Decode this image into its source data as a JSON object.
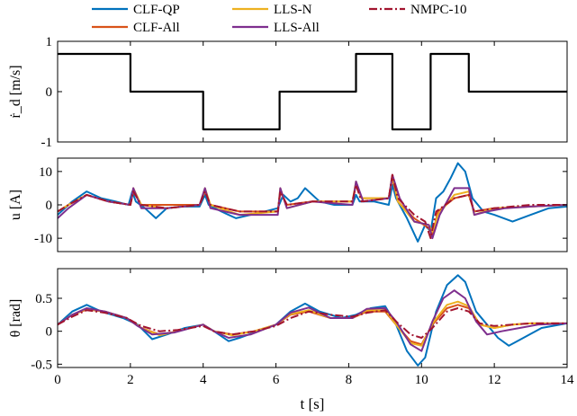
{
  "chart_data": {
    "type": "line",
    "xlabel": "t [s]",
    "xlim": [
      0,
      14
    ],
    "xticks": [
      0,
      2,
      4,
      6,
      8,
      10,
      12,
      14
    ],
    "grid": false,
    "legend": {
      "placement": "top",
      "entries": [
        {
          "label": "CLF-QP",
          "color": "#0072BD",
          "style": "solid"
        },
        {
          "label": "LLS-N",
          "color": "#EDB120",
          "style": "solid"
        },
        {
          "label": "NMPC-10",
          "color": "#A2142F",
          "style": "dashdot"
        },
        {
          "label": "CLF-All",
          "color": "#D95319",
          "style": "solid"
        },
        {
          "label": "LLS-All",
          "color": "#7E2F8E",
          "style": "solid"
        }
      ]
    },
    "panels": [
      {
        "id": "rdot",
        "ylabel": "ṙ_d [m/s]",
        "ylim": [
          -1,
          1
        ],
        "yticks": [
          -1,
          0,
          1
        ],
        "yticklabels": [
          "-1",
          "0",
          "1"
        ],
        "series": [
          {
            "name": "reference",
            "color": "#000000",
            "style": "step",
            "x": [
              0,
              2,
              2,
              4,
              4,
              6.1,
              6.1,
              8.2,
              8.2,
              9.2,
              9.2,
              10.25,
              10.25,
              11.3,
              11.3,
              14
            ],
            "y": [
              0.75,
              0.75,
              0,
              0,
              -0.75,
              -0.75,
              0,
              0,
              0.75,
              0.75,
              -0.75,
              -0.75,
              0.75,
              0.75,
              0,
              0
            ]
          }
        ]
      },
      {
        "id": "u",
        "ylabel": "u [A]",
        "ylim": [
          -14,
          14
        ],
        "yticks": [
          -10,
          0,
          10
        ],
        "yticklabels": [
          "-10",
          "0",
          "10"
        ],
        "series": [
          {
            "name": "CLF-QP",
            "color": "#0072BD",
            "x": [
              0,
              0.2,
              0.4,
              0.8,
              1.2,
              1.6,
              1.95,
              2.05,
              2.15,
              2.4,
              2.7,
              3.0,
              3.4,
              3.9,
              4.05,
              4.15,
              4.5,
              4.9,
              5.3,
              5.7,
              6.05,
              6.2,
              6.4,
              6.6,
              6.8,
              7.2,
              7.6,
              8.1,
              8.2,
              8.3,
              8.7,
              9.1,
              9.2,
              9.3,
              9.6,
              9.9,
              10.1,
              10.25,
              10.4,
              10.6,
              10.8,
              11.0,
              11.2,
              11.4,
              11.7,
              12.0,
              12.5,
              13.0,
              13.5,
              14.0
            ],
            "y": [
              -3,
              -1,
              1,
              4,
              2,
              1,
              0,
              4,
              1,
              -1,
              -4,
              -1,
              -0.5,
              -0.5,
              3,
              0,
              -2,
              -4,
              -3,
              -2,
              -1,
              3,
              1,
              2,
              5,
              1,
              0,
              0,
              3,
              1,
              1,
              0,
              6,
              2,
              -4,
              -11,
              -6,
              -8,
              2,
              4,
              8,
              12.5,
              10,
              2,
              -2,
              -3,
              -5,
              -3,
              -1,
              -0.5
            ]
          },
          {
            "name": "CLF-All",
            "color": "#D95319",
            "x": [
              0,
              0.3,
              0.8,
              1.4,
              2.0,
              2.08,
              2.3,
              3.0,
              3.9,
              4.05,
              4.2,
              5.0,
              6.05,
              6.12,
              6.3,
              7.0,
              8.1,
              8.2,
              8.35,
              9.1,
              9.2,
              9.35,
              9.8,
              10.2,
              10.3,
              10.45,
              10.9,
              11.3,
              11.45,
              12.0,
              13.0,
              14.0
            ],
            "y": [
              -2,
              0,
              3,
              1,
              0,
              4,
              0,
              0,
              0,
              4,
              0,
              -2,
              -2,
              4,
              0,
              1,
              1,
              6,
              2,
              2,
              8,
              1,
              -4,
              -7,
              -9,
              -2,
              2,
              3,
              -2,
              -1,
              -0.5,
              0
            ]
          },
          {
            "name": "LLS-N",
            "color": "#EDB120",
            "x": [
              0,
              0.3,
              0.8,
              1.4,
              2.0,
              2.08,
              2.3,
              3.0,
              3.9,
              4.05,
              4.2,
              5.0,
              6.05,
              6.12,
              6.3,
              7.0,
              8.1,
              8.2,
              8.35,
              9.1,
              9.2,
              9.35,
              9.8,
              10.2,
              10.3,
              10.45,
              10.9,
              11.3,
              11.45,
              12.0,
              13.0,
              14.0
            ],
            "y": [
              -2,
              0,
              3,
              1,
              0,
              5,
              0,
              -1,
              0,
              5,
              0,
              -3,
              -2,
              5,
              -1,
              1,
              1,
              7,
              2,
              2,
              9,
              1,
              -5,
              -6,
              -8,
              -3,
              3,
              4,
              -3,
              -1,
              -0.5,
              0
            ]
          },
          {
            "name": "LLS-All",
            "color": "#7E2F8E",
            "x": [
              0,
              0.3,
              0.8,
              1.4,
              2.0,
              2.08,
              2.3,
              3.0,
              3.9,
              4.05,
              4.2,
              5.0,
              6.05,
              6.12,
              6.3,
              7.0,
              8.1,
              8.2,
              8.4,
              9.1,
              9.2,
              9.4,
              9.8,
              10.2,
              10.3,
              10.5,
              10.9,
              11.3,
              11.45,
              11.8,
              12.3,
              13.0,
              14.0
            ],
            "y": [
              -4,
              -1,
              3,
              1,
              0,
              5,
              -1,
              -1,
              0,
              5,
              -1,
              -3,
              -3,
              5,
              -1,
              1,
              0,
              7,
              1,
              2,
              9,
              2,
              -5,
              -6,
              -10,
              -3,
              5,
              5,
              -3,
              -2,
              -1,
              -0.5,
              0
            ]
          },
          {
            "name": "NMPC-10",
            "color": "#A2142F",
            "style": "dashdot",
            "x": [
              0,
              0.3,
              0.8,
              1.4,
              2.0,
              2.08,
              2.3,
              3.0,
              3.9,
              4.05,
              4.2,
              5.0,
              6.05,
              6.12,
              6.3,
              7.0,
              8.1,
              8.2,
              8.35,
              9.1,
              9.2,
              9.35,
              9.8,
              10.1,
              10.25,
              10.4,
              10.9,
              11.3,
              11.45,
              12.0,
              13.0,
              14.0
            ],
            "y": [
              -2,
              0,
              3,
              1,
              0,
              4,
              0,
              -1,
              0,
              4,
              0,
              -2,
              -2,
              4,
              0,
              1,
              1,
              6,
              1,
              2,
              9,
              2,
              -3,
              -5,
              -10,
              -2,
              2,
              3,
              -2,
              -1,
              0,
              0
            ]
          }
        ]
      },
      {
        "id": "theta",
        "ylabel": "θ [rad]",
        "ylim": [
          -0.55,
          0.95
        ],
        "yticks": [
          -0.5,
          0,
          0.5
        ],
        "yticklabels": [
          "-0.5",
          "0",
          "0.5"
        ],
        "series": [
          {
            "name": "CLF-QP",
            "color": "#0072BD",
            "x": [
              0,
              0.4,
              0.8,
              1.2,
              1.8,
              2.2,
              2.6,
              3.0,
              3.5,
              4.0,
              4.3,
              4.7,
              5.0,
              5.5,
              6.0,
              6.4,
              6.8,
              7.2,
              7.8,
              8.2,
              8.6,
              9.0,
              9.3,
              9.6,
              9.9,
              10.1,
              10.4,
              10.7,
              11.0,
              11.2,
              11.5,
              11.8,
              12.1,
              12.4,
              12.8,
              13.3,
              14.0
            ],
            "y": [
              0.1,
              0.3,
              0.4,
              0.3,
              0.2,
              0.1,
              -0.12,
              -0.05,
              0.05,
              0.1,
              0.0,
              -0.15,
              -0.1,
              0.0,
              0.1,
              0.3,
              0.42,
              0.3,
              0.2,
              0.25,
              0.35,
              0.38,
              0.1,
              -0.3,
              -0.52,
              -0.4,
              0.3,
              0.7,
              0.85,
              0.75,
              0.3,
              0.1,
              -0.1,
              -0.22,
              -0.1,
              0.05,
              0.12
            ]
          },
          {
            "name": "CLF-All",
            "color": "#D95319",
            "x": [
              0,
              0.4,
              0.8,
              1.3,
              1.9,
              2.3,
              2.8,
              3.3,
              4.0,
              4.3,
              4.8,
              5.4,
              6.0,
              6.4,
              6.9,
              7.5,
              8.1,
              8.5,
              9.0,
              9.3,
              9.7,
              10.0,
              10.3,
              10.7,
              11.0,
              11.3,
              11.6,
              12.0,
              12.5,
              13.0,
              14.0
            ],
            "y": [
              0.1,
              0.25,
              0.33,
              0.3,
              0.2,
              0.05,
              -0.05,
              0.0,
              0.1,
              0.0,
              -0.05,
              0.0,
              0.1,
              0.25,
              0.3,
              0.2,
              0.2,
              0.3,
              0.3,
              0.1,
              -0.15,
              -0.2,
              0.1,
              0.35,
              0.4,
              0.35,
              0.1,
              0.05,
              0.1,
              0.12,
              0.12
            ]
          },
          {
            "name": "LLS-N",
            "color": "#EDB120",
            "x": [
              0,
              0.4,
              0.8,
              1.3,
              1.9,
              2.3,
              2.8,
              3.3,
              4.0,
              4.3,
              4.8,
              5.4,
              6.0,
              6.4,
              6.9,
              7.5,
              8.1,
              8.5,
              9.0,
              9.3,
              9.7,
              10.0,
              10.3,
              10.7,
              11.0,
              11.3,
              11.6,
              12.0,
              12.5,
              13.0,
              14.0
            ],
            "y": [
              0.1,
              0.25,
              0.34,
              0.3,
              0.2,
              0.05,
              -0.06,
              0.0,
              0.1,
              0.0,
              -0.06,
              0.0,
              0.1,
              0.26,
              0.32,
              0.2,
              0.2,
              0.32,
              0.32,
              0.1,
              -0.18,
              -0.22,
              0.12,
              0.4,
              0.45,
              0.38,
              0.1,
              0.05,
              0.1,
              0.12,
              0.12
            ]
          },
          {
            "name": "LLS-All",
            "color": "#7E2F8E",
            "x": [
              0,
              0.4,
              0.8,
              1.3,
              1.9,
              2.2,
              2.6,
              3.2,
              4.0,
              4.3,
              4.7,
              5.3,
              6.0,
              6.4,
              6.9,
              7.5,
              8.1,
              8.5,
              9.0,
              9.3,
              9.7,
              10.0,
              10.3,
              10.6,
              10.9,
              11.2,
              11.5,
              11.8,
              12.2,
              12.7,
              13.2,
              14.0
            ],
            "y": [
              0.1,
              0.25,
              0.35,
              0.3,
              0.2,
              0.08,
              -0.05,
              -0.02,
              0.1,
              0.0,
              -0.1,
              -0.05,
              0.1,
              0.28,
              0.36,
              0.2,
              0.2,
              0.34,
              0.35,
              0.15,
              -0.2,
              -0.3,
              0.15,
              0.5,
              0.62,
              0.5,
              0.15,
              -0.05,
              0.0,
              0.05,
              0.1,
              0.12
            ]
          },
          {
            "name": "NMPC-10",
            "color": "#A2142F",
            "style": "dashdot",
            "x": [
              0,
              0.4,
              0.8,
              1.3,
              1.9,
              2.3,
              2.8,
              3.3,
              4.0,
              4.3,
              4.8,
              5.4,
              6.0,
              6.4,
              6.9,
              7.5,
              8.1,
              8.5,
              9.0,
              9.3,
              9.7,
              10.0,
              10.3,
              10.7,
              11.0,
              11.3,
              11.6,
              12.0,
              12.5,
              13.0,
              14.0
            ],
            "y": [
              0.1,
              0.22,
              0.32,
              0.28,
              0.2,
              0.08,
              0.0,
              0.02,
              0.08,
              0.0,
              -0.05,
              0.0,
              0.08,
              0.2,
              0.3,
              0.25,
              0.22,
              0.28,
              0.32,
              0.15,
              -0.05,
              -0.1,
              0.05,
              0.3,
              0.35,
              0.3,
              0.12,
              0.08,
              0.1,
              0.12,
              0.12
            ]
          }
        ]
      }
    ]
  }
}
